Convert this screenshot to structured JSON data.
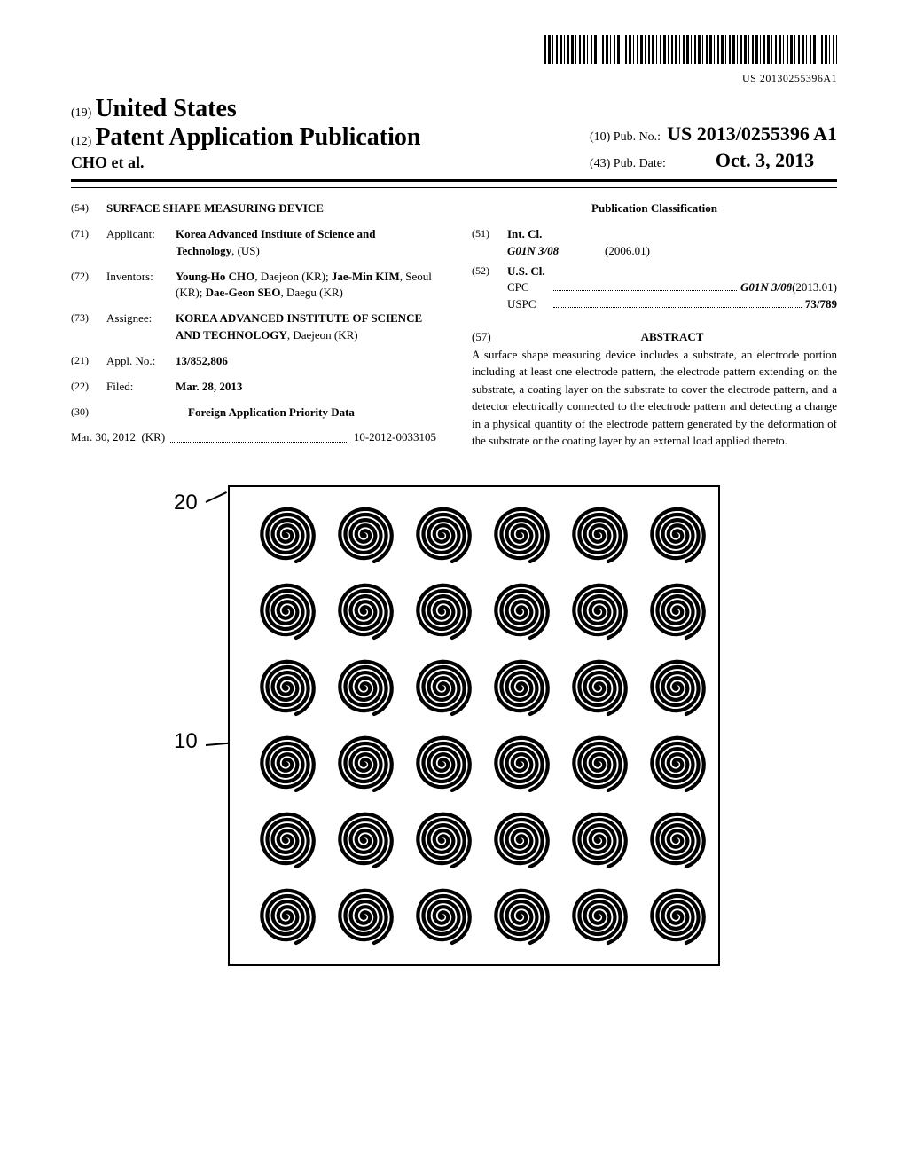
{
  "barcode_text": "US 20130255396A1",
  "header": {
    "prefix19": "(19)",
    "country": "United States",
    "prefix12": "(12)",
    "pub_type": "Patent Application Publication",
    "authors": "CHO et al.",
    "prefix10": "(10)",
    "pubno_label": "Pub. No.:",
    "pubno": "US 2013/0255396 A1",
    "prefix43": "(43)",
    "pubdate_label": "Pub. Date:",
    "pubdate": "Oct. 3, 2013"
  },
  "left": {
    "f54": {
      "num": "(54)",
      "title": "SURFACE SHAPE MEASURING DEVICE"
    },
    "f71": {
      "num": "(71)",
      "label": "Applicant:",
      "content_bold": "Korea Advanced Institute of Science and Technology",
      "content_tail": ", (US)"
    },
    "f72": {
      "num": "(72)",
      "label": "Inventors:",
      "i1b": "Young-Ho CHO",
      "i1t": ", Daejeon (KR); ",
      "i2b": "Jae-Min KIM",
      "i2t": ", Seoul (KR); ",
      "i3b": "Dae-Geon SEO",
      "i3t": ", Daegu (KR)"
    },
    "f73": {
      "num": "(73)",
      "label": "Assignee:",
      "content_bold": "KOREA ADVANCED INSTITUTE OF SCIENCE AND TECHNOLOGY",
      "content_tail": ", Daejeon (KR)"
    },
    "f21": {
      "num": "(21)",
      "label": "Appl. No.:",
      "value": "13/852,806"
    },
    "f22": {
      "num": "(22)",
      "label": "Filed:",
      "value": "Mar. 28, 2013"
    },
    "f30": {
      "num": "(30)",
      "heading": "Foreign Application Priority Data"
    },
    "priority": {
      "date": "Mar. 30, 2012",
      "country": "(KR)",
      "number": "10-2012-0033105"
    }
  },
  "right": {
    "class_heading": "Publication Classification",
    "f51": {
      "num": "(51)",
      "label": "Int. Cl.",
      "code": "G01N 3/08",
      "year": "(2006.01)"
    },
    "f52": {
      "num": "(52)",
      "label": "U.S. Cl.",
      "cpc_label": "CPC",
      "cpc_val": "G01N 3/08",
      "cpc_year": "(2013.01)",
      "uspc_label": "USPC",
      "uspc_val": "73/789"
    },
    "f57": {
      "num": "(57)",
      "heading": "ABSTRACT"
    },
    "abstract": "A surface shape measuring device includes a substrate, an electrode portion including at least one electrode pattern, the electrode pattern extending on the substrate, a coating layer on the substrate to cover the electrode pattern, and a detector electrically connected to the electrode pattern and detecting a change in a physical quantity of the electrode pattern generated by the deformation of the substrate or the coating layer by an external load applied thereto."
  },
  "figure": {
    "label20": "20",
    "label10": "10",
    "rows": 6,
    "cols": 6,
    "spiral_color": "#000000",
    "background": "#ffffff"
  }
}
